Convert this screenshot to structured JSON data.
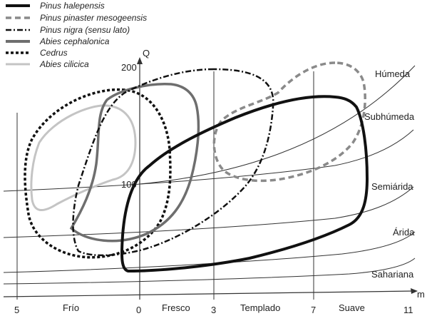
{
  "legend": [
    {
      "label": "Pinus halepensis",
      "style": "solid-black"
    },
    {
      "label": "Pinus pinaster mesogeensis",
      "style": "dashed-gray"
    },
    {
      "label": "Pinus nigra (sensu lato)",
      "style": "dash-dot-black"
    },
    {
      "label": "Abies cephalonica",
      "style": "solid-gray"
    },
    {
      "label": "Cedrus",
      "style": "dotted-black"
    },
    {
      "label": "Abies cilicica",
      "style": "solid-lightgray"
    }
  ],
  "axes": {
    "y_label": "Q",
    "y_ticks": [
      "200",
      "100"
    ],
    "x_label": "m",
    "x_ticks": [
      "5",
      "0",
      "3",
      "7",
      "11"
    ]
  },
  "bioclimatic_zones": [
    "Húmeda",
    "Subhúmeda",
    "Semiárida",
    "Árida",
    "Sahariana"
  ],
  "temperature_regions": [
    "Frío",
    "Fresco",
    "Templado",
    "Suave"
  ],
  "colors": {
    "black": "#111111",
    "dark_gray": "#6e6e6e",
    "mid_gray": "#8a8a8a",
    "light_gray": "#c4c4c4",
    "thin_line": "#333333"
  }
}
